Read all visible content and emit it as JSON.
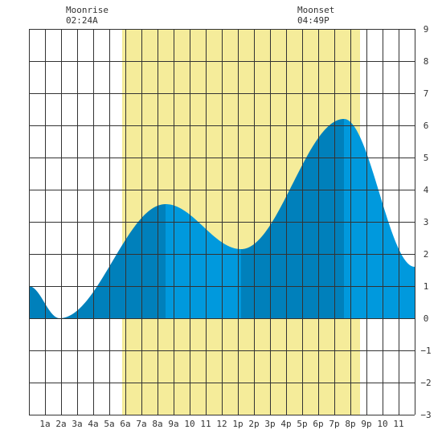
{
  "moon": {
    "moonrise_label": "Moonrise",
    "moonrise_time": "02:24A",
    "moonset_label": "Moonset",
    "moonset_time": "04:49P"
  },
  "chart_data": {
    "type": "area",
    "title": "",
    "xlabel": "",
    "ylabel": "",
    "xlim": [
      0,
      24
    ],
    "ylim": [
      -3,
      9
    ],
    "grid": true,
    "x_tick_labels": [
      "1a",
      "2a",
      "3a",
      "4a",
      "5a",
      "6a",
      "7a",
      "8a",
      "9a",
      "10",
      "11",
      "12",
      "1p",
      "2p",
      "3p",
      "4p",
      "5p",
      "6p",
      "7p",
      "8p",
      "9p",
      "10",
      "11"
    ],
    "y_tick_labels": [
      "9",
      "8",
      "7",
      "6",
      "5",
      "4",
      "3",
      "2",
      "1",
      "0",
      "−1",
      "−2",
      "−3"
    ],
    "daylight_hours": [
      5.8,
      20.6
    ],
    "tide_extremes": [
      {
        "type": "high",
        "hour": 0.0,
        "height": 1.0
      },
      {
        "type": "low",
        "hour": 1.9,
        "height": 0.0
      },
      {
        "type": "high",
        "hour": 8.5,
        "height": 3.55
      },
      {
        "type": "low",
        "hour": 13.2,
        "height": 2.15
      },
      {
        "type": "high",
        "hour": 19.6,
        "height": 6.2
      },
      {
        "type": "low",
        "hour": 24.0,
        "height": 1.6
      }
    ],
    "shading_boundaries_hours": [
      8.5,
      13.2,
      19.6
    ],
    "colors": {
      "daylight": "#f5ec9a",
      "tide_light": "#0099dd",
      "tide_dark": "#0080bb",
      "grid": "#333333"
    }
  }
}
